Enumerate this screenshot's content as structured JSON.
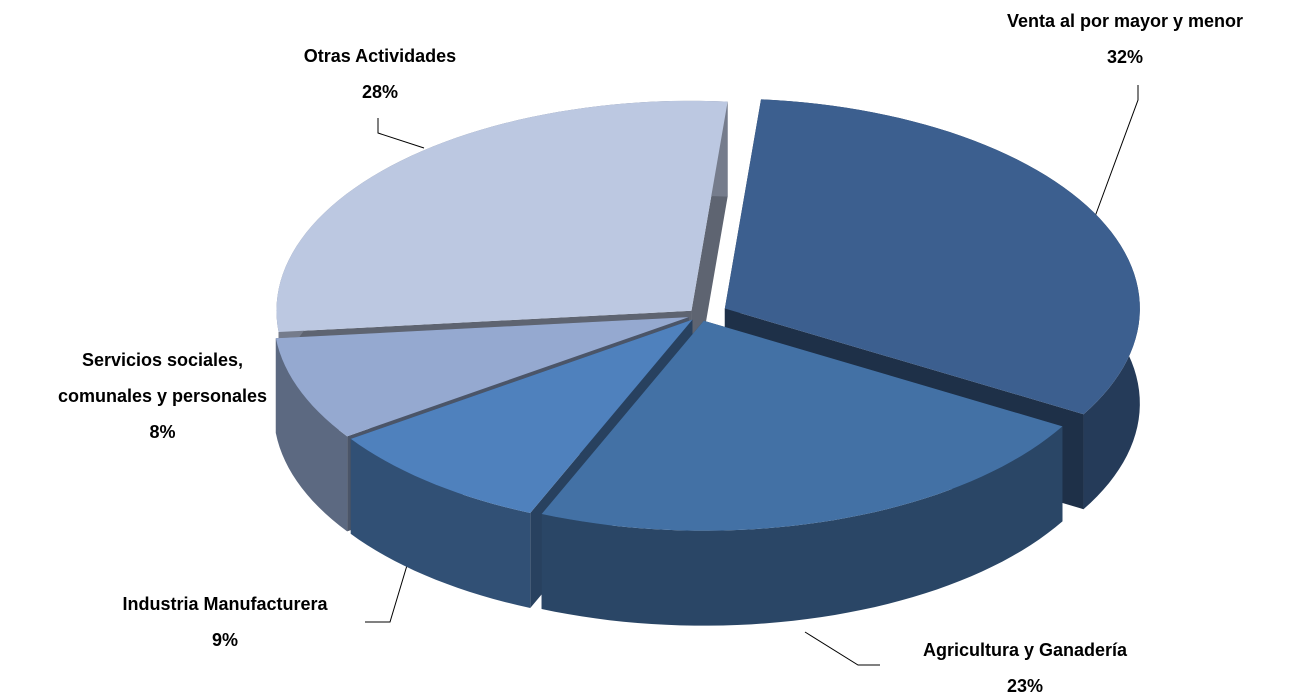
{
  "chart_data": {
    "type": "pie3d",
    "categories": [
      "Venta al por mayor y menor",
      "Agricultura y Ganadería",
      "Industria Manufacturera",
      "Servicios sociales, comunales y personales",
      "Otras Actividades"
    ],
    "values": [
      32,
      23,
      9,
      8,
      28
    ],
    "value_labels": [
      "32%",
      "23%",
      "9%",
      "8%",
      "28%"
    ],
    "colors": [
      "#3c5f8f",
      "#4371a5",
      "#4f81bd",
      "#95a9d0",
      "#bcc8e1"
    ]
  }
}
